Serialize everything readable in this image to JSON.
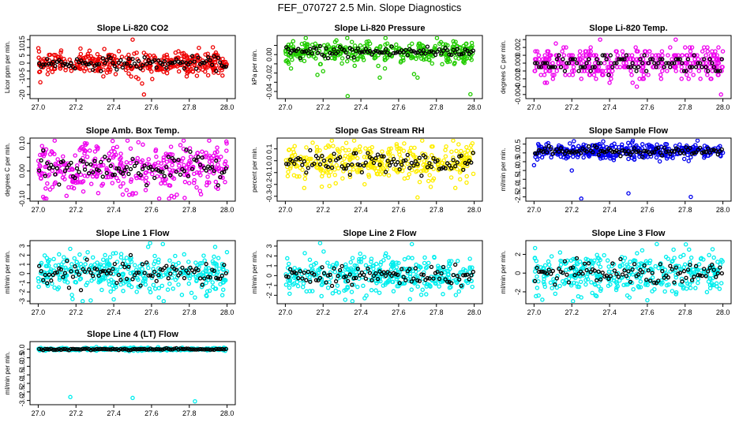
{
  "figure": {
    "title": "FEF_070727  2.5 Min. Slope Diagnostics",
    "x_tick_labels": [
      "27.0",
      "27.2",
      "27.4",
      "27.6",
      "27.8",
      "28.0"
    ]
  },
  "colors": {
    "black": "#000000",
    "red": "#ee0000",
    "green": "#22cc00",
    "magenta": "#ee00ee",
    "yellow": "#ffee00",
    "blue": "#0000ee",
    "cyan": "#00eeee"
  },
  "chart_data": [
    {
      "type": "scatter",
      "title": "Slope Li-820 CO2",
      "xlabel": "",
      "ylabel": "Licor ppm per min.",
      "xlim": [
        27.0,
        28.0
      ],
      "ylim": [
        -21,
        16
      ],
      "yticks": [
        -20,
        -15,
        -10,
        -5,
        0,
        5,
        10,
        15
      ],
      "ytick_labels": [
        "-20",
        "",
        "-10",
        "-5",
        "0",
        "5",
        "10",
        "15"
      ],
      "color": "red",
      "center": 0,
      "spread": 3.5,
      "outliers": [
        [
          27.05,
          -7
        ],
        [
          27.35,
          9
        ],
        [
          27.41,
          -7
        ],
        [
          27.5,
          15
        ],
        [
          27.53,
          -10
        ],
        [
          27.55,
          -13
        ],
        [
          27.56,
          -20
        ],
        [
          27.93,
          -6
        ],
        [
          27.95,
          5
        ]
      ]
    },
    {
      "type": "scatter",
      "title": "Slope Li-820 Pressure",
      "xlabel": "",
      "ylabel": "kPa per min.",
      "xlim": [
        27.0,
        28.0
      ],
      "ylim": [
        -0.045,
        0.018
      ],
      "yticks": [
        -0.04,
        -0.03,
        -0.02,
        -0.01,
        0.0,
        0.01
      ],
      "ytick_labels": [
        "-0.04",
        "",
        "-0.02",
        "",
        "0.00",
        ""
      ],
      "color": "green",
      "center": 0.003,
      "spread": 0.006,
      "outliers": [
        [
          27.17,
          -0.022
        ],
        [
          27.2,
          -0.018
        ],
        [
          27.33,
          -0.045
        ],
        [
          27.5,
          -0.025
        ],
        [
          27.7,
          -0.025
        ],
        [
          27.98,
          -0.043
        ],
        [
          27.03,
          -0.015
        ]
      ]
    },
    {
      "type": "scatter",
      "title": "Slope Li-820 Temp.",
      "xlabel": "",
      "ylabel": "degrees C per min.",
      "xlim": [
        27.0,
        28.0
      ],
      "ylim": [
        -0.0042,
        0.0032
      ],
      "yticks": [
        -0.004,
        -0.003,
        -0.002,
        -0.001,
        0.0,
        0.001,
        0.002,
        0.003
      ],
      "ytick_labels": [
        "-0.004",
        "",
        "-0.002",
        "",
        "0.000",
        "",
        "0.002",
        ""
      ],
      "color": "magenta",
      "center": 0.0,
      "spread": 0.001,
      "discrete_step": 0.0005,
      "outliers": [
        [
          27.07,
          0.0015
        ],
        [
          27.1,
          -0.002
        ],
        [
          27.3,
          0.002
        ],
        [
          27.35,
          0.003
        ],
        [
          27.4,
          -0.0025
        ],
        [
          27.75,
          0.003
        ],
        [
          27.99,
          -0.004
        ],
        [
          27.55,
          0.0015
        ],
        [
          27.8,
          0.002
        ]
      ]
    },
    {
      "type": "scatter",
      "title": "Slope Amb. Box Temp.",
      "xlabel": "",
      "ylabel": "degrees C per min.",
      "xlim": [
        27.0,
        28.0
      ],
      "ylim": [
        -0.1,
        0.11
      ],
      "yticks": [
        -0.1,
        -0.05,
        0.0,
        0.05,
        0.1
      ],
      "ytick_labels": [
        "-0.10",
        "",
        "0.00",
        "",
        "0.10"
      ],
      "color": "magenta",
      "center": 0.01,
      "spread": 0.045,
      "outliers": [
        [
          27.15,
          -0.09
        ],
        [
          27.77,
          0.11
        ],
        [
          27.5,
          -0.08
        ]
      ]
    },
    {
      "type": "scatter",
      "title": "Slope Gas Stream RH",
      "xlabel": "",
      "ylabel": "percent per min.",
      "xlim": [
        27.0,
        28.0
      ],
      "ylim": [
        -0.32,
        0.17
      ],
      "yticks": [
        -0.3,
        -0.2,
        -0.1,
        0.0,
        0.1
      ],
      "ytick_labels": [
        "-0.3",
        "-0.2",
        "-0.1",
        "0.0",
        "0.1"
      ],
      "color": "yellow",
      "center": -0.02,
      "spread": 0.075,
      "outliers": [
        [
          27.7,
          -0.31
        ],
        [
          27.1,
          -0.23
        ],
        [
          27.9,
          -0.23
        ]
      ]
    },
    {
      "type": "scatter",
      "title": "Slope Sample Flow",
      "xlabel": "",
      "ylabel": "ml/min per min.",
      "xlim": [
        27.0,
        28.0
      ],
      "ylim": [
        -2.6,
        0.7
      ],
      "yticks": [
        -2.5,
        -2.0,
        -1.5,
        -1.0,
        -0.5,
        0.0,
        0.5
      ],
      "ytick_labels": [
        "-2.5",
        "-2.0",
        "-1.5",
        "-1.0",
        "-0.5",
        "0.0",
        "0.5"
      ],
      "color": "blue",
      "center": 0.1,
      "spread": 0.22,
      "outliers": [
        [
          27.0,
          -0.7
        ],
        [
          27.2,
          -1.0
        ],
        [
          27.25,
          -2.6
        ],
        [
          27.5,
          -2.3
        ],
        [
          27.83,
          -2.5
        ],
        [
          27.52,
          0.6
        ]
      ]
    },
    {
      "type": "scatter",
      "title": "Slope Line 1 Flow",
      "xlabel": "",
      "ylabel": "ml/min per min.",
      "xlim": [
        27.0,
        28.0
      ],
      "ylim": [
        -3.0,
        3.3
      ],
      "yticks": [
        -3,
        -2,
        -1,
        0,
        1,
        2,
        3
      ],
      "ytick_labels": [
        "-3",
        "-2",
        "-1",
        "0",
        "1",
        "2",
        "3"
      ],
      "color": "cyan",
      "center": 0.0,
      "spread": 1.1,
      "outliers": [
        [
          27.66,
          3.2
        ],
        [
          27.4,
          -2.8
        ],
        [
          27.83,
          -2.6
        ]
      ]
    },
    {
      "type": "scatter",
      "title": "Slope Line 2 Flow",
      "xlabel": "",
      "ylabel": "ml/min per min.",
      "xlim": [
        27.0,
        28.0
      ],
      "ylim": [
        -2.6,
        3.3
      ],
      "yticks": [
        -2,
        -1,
        0,
        1,
        2,
        3
      ],
      "ytick_labels": [
        "-2",
        "-1",
        "0",
        "1",
        "2",
        "3"
      ],
      "color": "cyan",
      "center": 0.0,
      "spread": 0.95,
      "outliers": [
        [
          27.67,
          3.2
        ],
        [
          27.66,
          -2.4
        ],
        [
          27.42,
          -2.3
        ]
      ]
    },
    {
      "type": "scatter",
      "title": "Slope Line 3 Flow",
      "xlabel": "",
      "ylabel": "ml/min per min.",
      "xlim": [
        27.0,
        28.0
      ],
      "ylim": [
        -3.0,
        3.2
      ],
      "yticks": [
        -2,
        0,
        2
      ],
      "ytick_labels": [
        "-2",
        "0",
        "2"
      ],
      "color": "cyan",
      "center": 0.0,
      "spread": 1.1,
      "outliers": [
        [
          27.65,
          3.1
        ],
        [
          27.6,
          -2.9
        ],
        [
          27.25,
          -2.6
        ]
      ]
    },
    {
      "type": "scatter",
      "title": "Slope Line 4 (LT) Flow",
      "xlabel": "",
      "ylabel": "ml/min per min.",
      "xlim": [
        27.0,
        28.0
      ],
      "ylim": [
        -3.1,
        0.3
      ],
      "yticks": [
        -3.0,
        -2.5,
        -2.0,
        -1.5,
        -1.0,
        -0.5,
        0.0
      ],
      "ytick_labels": [
        "-3.0",
        "-2.5",
        "-2.0",
        "-1.5",
        "-1.0",
        "-0.5",
        "0.0"
      ],
      "color": "cyan",
      "center": 0.0,
      "spread": 0.04,
      "outliers": [
        [
          27.17,
          -2.8
        ],
        [
          27.5,
          -2.85
        ],
        [
          27.83,
          -3.05
        ]
      ]
    }
  ]
}
